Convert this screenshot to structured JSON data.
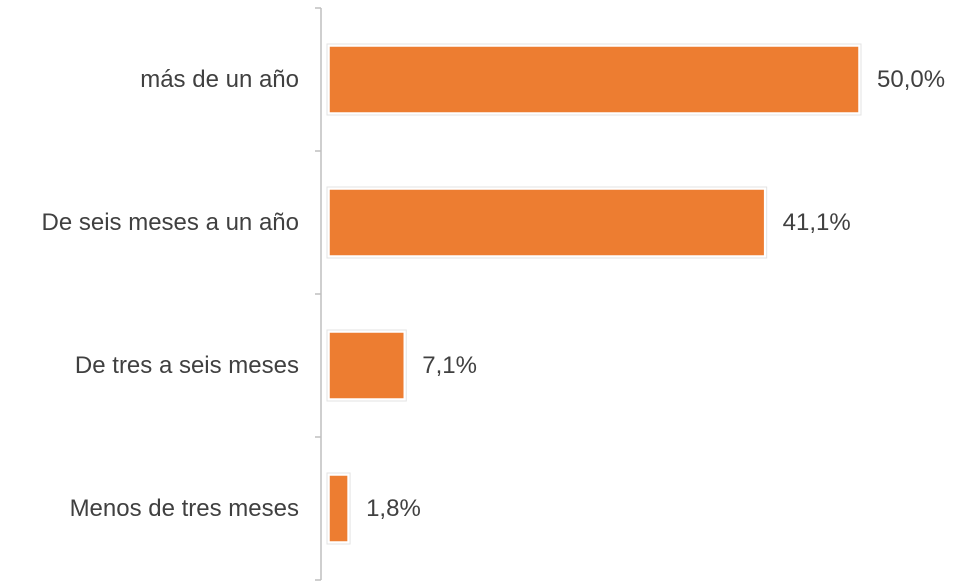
{
  "chart_data": {
    "type": "bar",
    "orientation": "horizontal",
    "categories": [
      "más de un año",
      "De seis meses a un año",
      "De tres a seis meses",
      "Menos de tres meses"
    ],
    "values": [
      50.0,
      41.1,
      7.1,
      1.8
    ],
    "value_labels": [
      "50,0%",
      "41,1%",
      "7,1%",
      "1,8%"
    ],
    "unit": "%",
    "xlim": [
      0,
      50
    ],
    "grid": false,
    "legend": "none",
    "bar_color": "#ED7D31",
    "axis_color": "#BFBFBF",
    "text_color": "#404040"
  }
}
